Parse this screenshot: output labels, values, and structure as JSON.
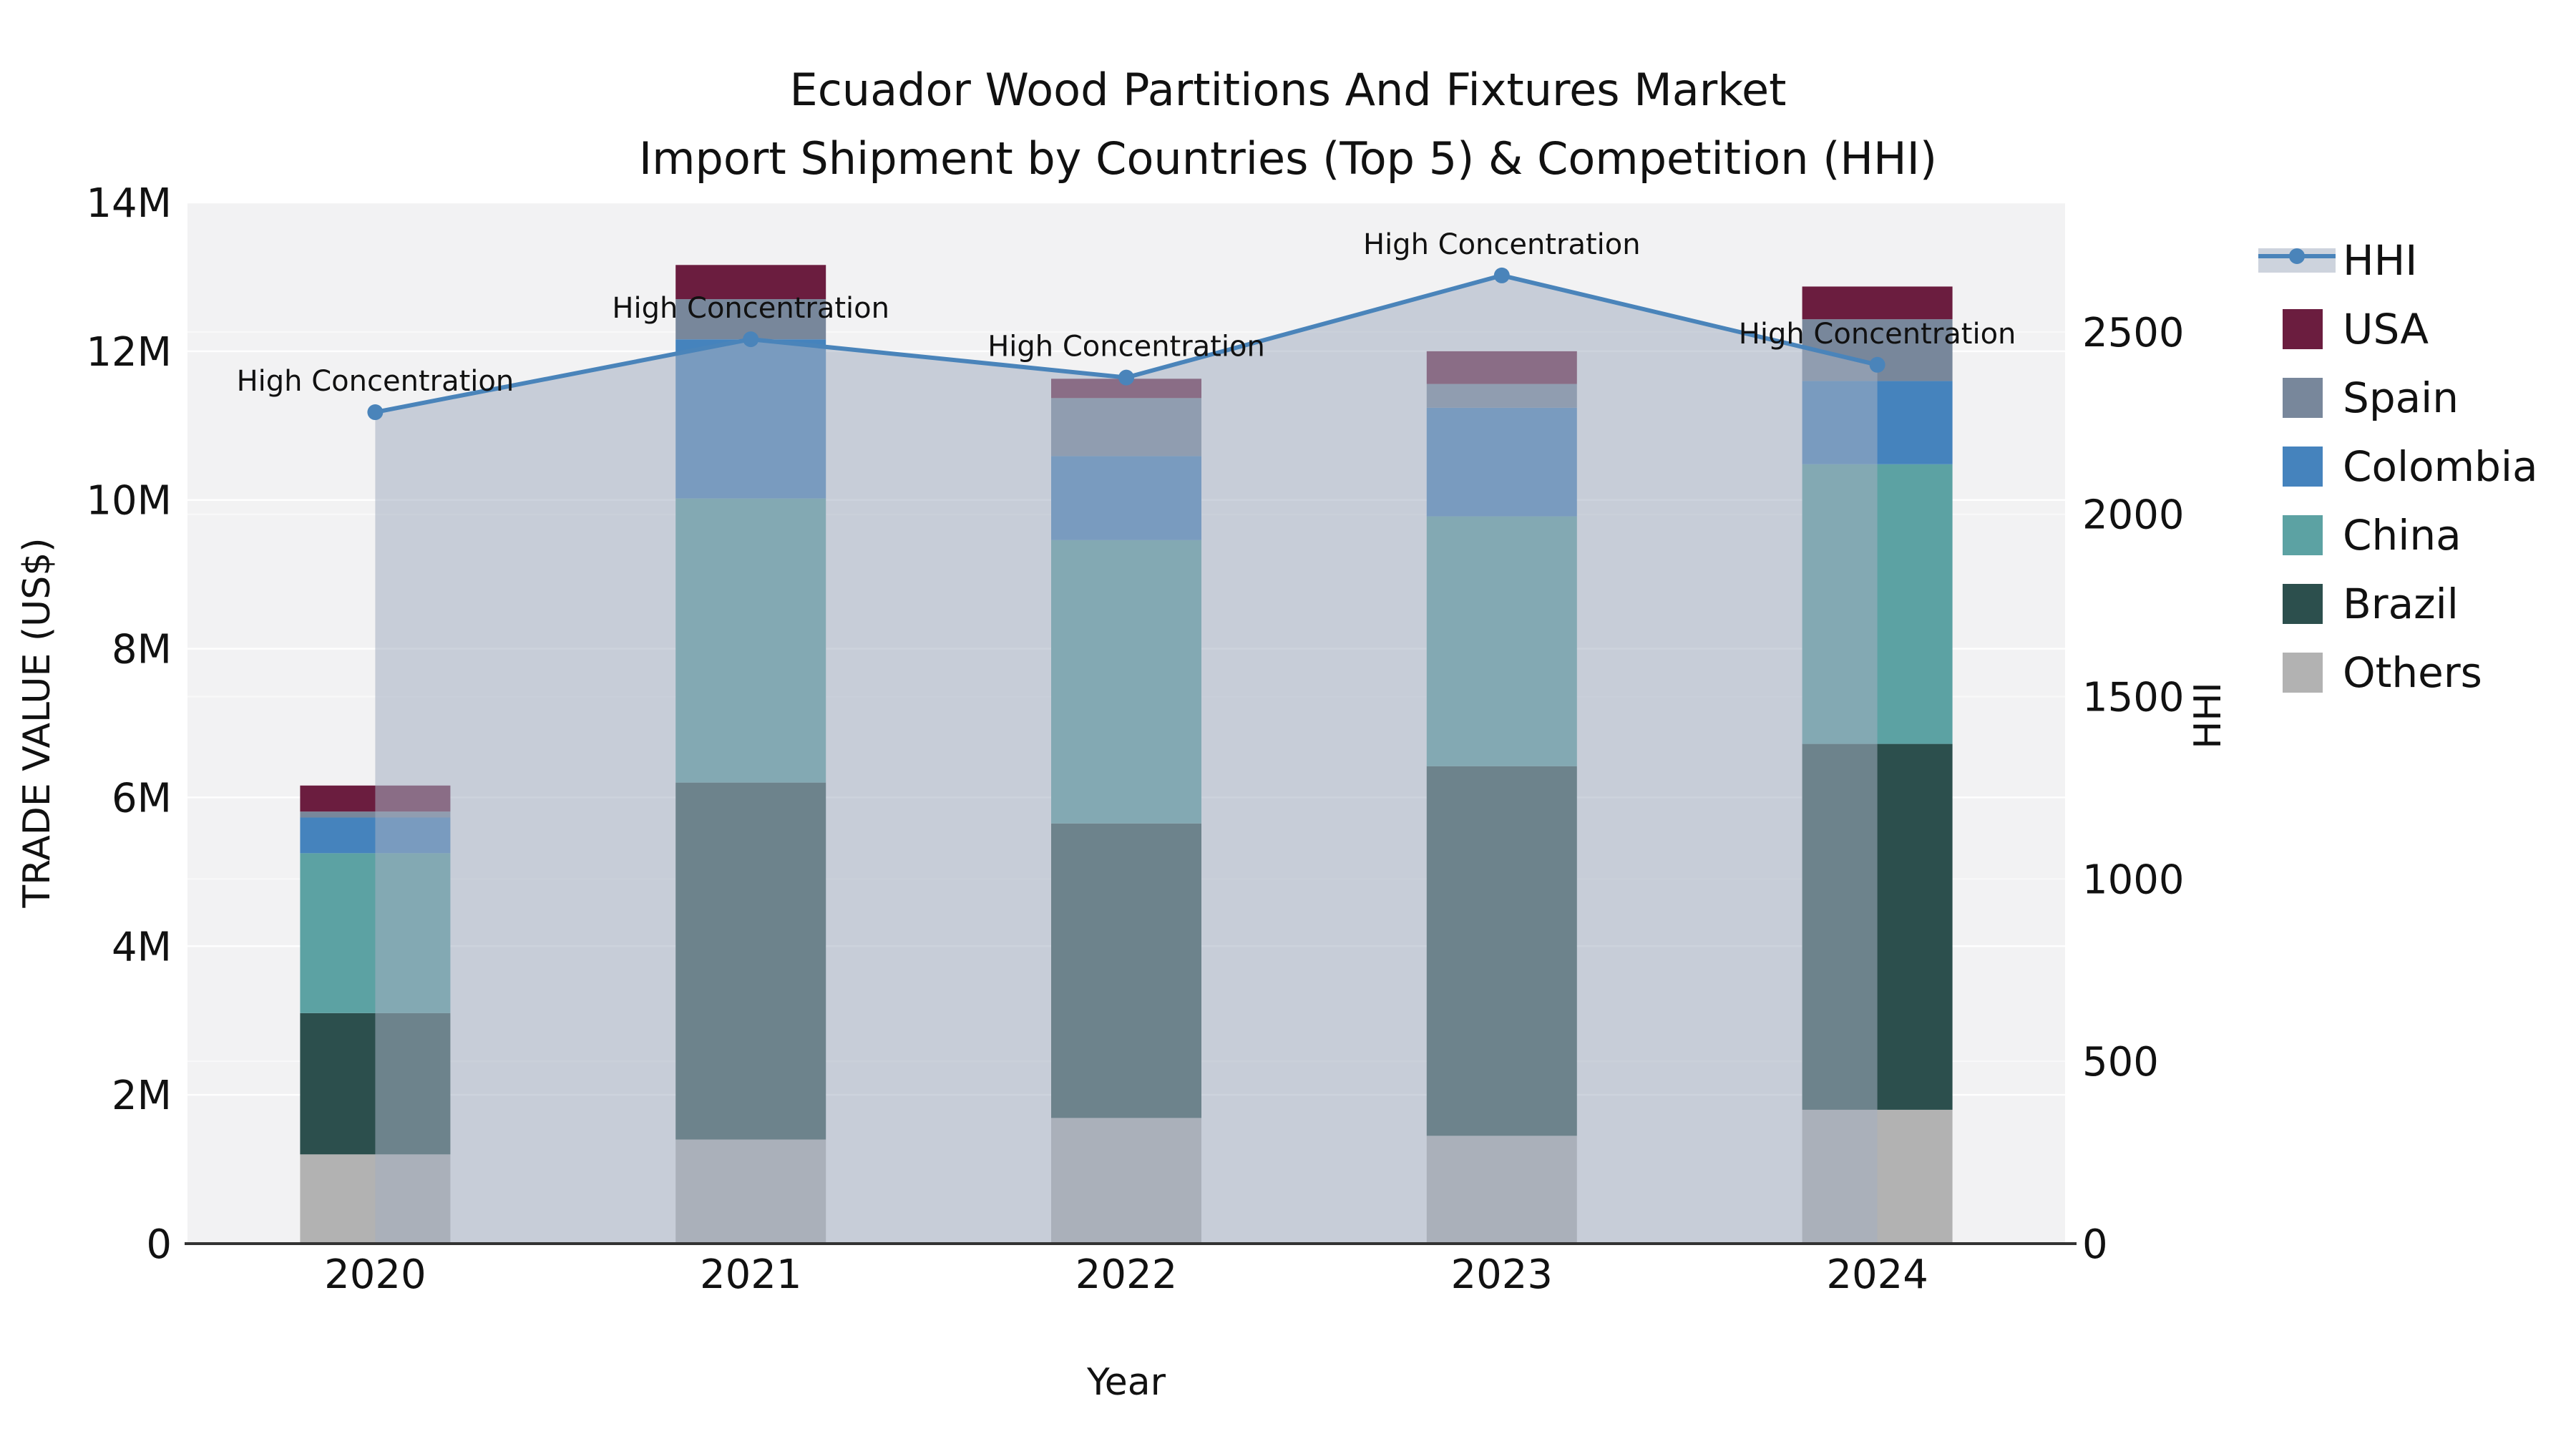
{
  "title": {
    "line1": "Ecuador Wood Partitions And Fixtures Market",
    "line2": "Import Shipment by Countries (Top 5) & Competition (HHI)"
  },
  "chart_data": {
    "type": "bar+line",
    "categories": [
      "2020",
      "2021",
      "2022",
      "2023",
      "2024"
    ],
    "bar_value_unit": "million US$",
    "stack_order_bottom_to_top": [
      "Others",
      "Brazil",
      "China",
      "Colombia",
      "Spain",
      "USA"
    ],
    "series": [
      {
        "name": "USA",
        "color": "#6B1D3F",
        "values": [
          0.35,
          0.46,
          0.26,
          0.44,
          0.44
        ]
      },
      {
        "name": "Spain",
        "color": "#78879B",
        "values": [
          0.08,
          0.54,
          0.78,
          0.32,
          0.83
        ]
      },
      {
        "name": "Colombia",
        "color": "#4583BD",
        "values": [
          0.48,
          2.14,
          1.13,
          1.46,
          1.12
        ]
      },
      {
        "name": "China",
        "color": "#5CA2A3",
        "values": [
          2.15,
          3.82,
          3.81,
          3.36,
          3.76
        ]
      },
      {
        "name": "Brazil",
        "color": "#2C4F4D",
        "values": [
          1.9,
          4.8,
          3.96,
          4.97,
          4.92
        ]
      },
      {
        "name": "Others",
        "color": "#B2B2B2",
        "values": [
          1.2,
          1.4,
          1.69,
          1.45,
          1.8
        ]
      }
    ],
    "line_series": {
      "name": "HHI",
      "color": "#4A84BA",
      "area_color": "rgba(164,174,193,0.55)",
      "values": [
        2280,
        2480,
        2375,
        2655,
        2410
      ]
    },
    "annotations": [
      "High Concentration",
      "High Concentration",
      "High Concentration",
      "High Concentration",
      "High Concentration"
    ],
    "left_axis": {
      "label": "TRADE VALUE (US$)",
      "ticks": [
        "0",
        "2M",
        "4M",
        "6M",
        "8M",
        "10M",
        "12M",
        "14M"
      ],
      "tick_values": [
        0,
        2,
        4,
        6,
        8,
        10,
        12,
        14
      ],
      "max": 14
    },
    "right_axis": {
      "label": "HHI",
      "ticks": [
        "0",
        "500",
        "1000",
        "1500",
        "2000",
        "2500"
      ],
      "tick_values": [
        0,
        500,
        1000,
        1500,
        2000,
        2500
      ],
      "max": 2855
    },
    "x_axis": {
      "label": "Year"
    },
    "legend": [
      "HHI",
      "USA",
      "Spain",
      "Colombia",
      "China",
      "Brazil",
      "Others"
    ],
    "plot_background": "#F2F2F3",
    "gridline_color": "#FFFFFF"
  }
}
